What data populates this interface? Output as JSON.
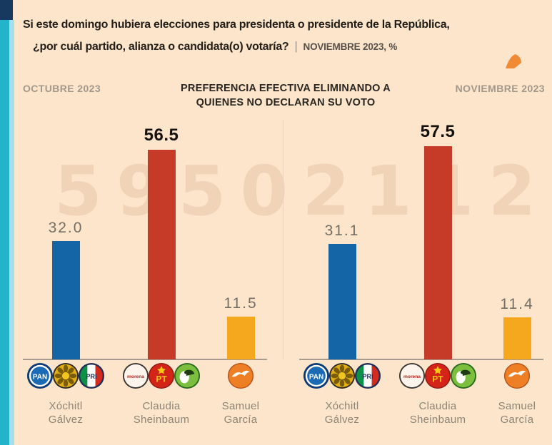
{
  "header": {
    "question_line1": "Si este domingo hubiera elecciones para presidenta o presidente de la República,",
    "question_line2": "¿por cuál partido, alianza o candidata(o) votaría?",
    "separator": "|",
    "survey_note": "NOVIEMBRE 2023, %"
  },
  "section": {
    "left_period_label": "OCTUBRE 2023",
    "title_line1": "PREFERENCIA EFECTIVA ELIMINANDO A",
    "title_line2": "QUIENES NO DECLARAN SU VOTO",
    "right_period_label": "NOVIEMBRE 2023"
  },
  "watermark": "59502112",
  "colors": {
    "background": "#fce5cb",
    "accent_teal": "#23b4ca",
    "accent_navy": "#17395f",
    "bar_blue": "#1465a5",
    "bar_red": "#c63a28",
    "bar_yellow": "#f5a81d",
    "muted_text": "#8d8476",
    "axis_line": "#a59c8f"
  },
  "chart_data": [
    {
      "type": "bar",
      "panel_label": "OCTUBRE 2023",
      "title": "PREFERENCIA EFECTIVA ELIMINANDO A QUIENES NO DECLARAN SU VOTO",
      "categories": [
        "Xóchitl Gálvez",
        "Claudia Sheinbaum",
        "Samuel García"
      ],
      "values": [
        32.0,
        56.5,
        11.5
      ],
      "unit": "%",
      "ylim": [
        0,
        60
      ],
      "grid": false,
      "highlight_index": 1,
      "candidates": [
        {
          "name_line1": "Xóchitl",
          "name_line2": "Gálvez",
          "value": 32.0,
          "value_label": "32.0",
          "color": "#1465a5",
          "parties": [
            "PAN",
            "PRD",
            "PRI"
          ]
        },
        {
          "name_line1": "Claudia",
          "name_line2": "Sheinbaum",
          "value": 56.5,
          "value_label": "56.5",
          "color": "#c63a28",
          "parties": [
            "MORENA",
            "PT",
            "PVEM"
          ]
        },
        {
          "name_line1": "Samuel",
          "name_line2": "García",
          "value": 11.5,
          "value_label": "11.5",
          "color": "#f5a81d",
          "parties": [
            "MC"
          ]
        }
      ]
    },
    {
      "type": "bar",
      "panel_label": "NOVIEMBRE 2023",
      "title": "PREFERENCIA EFECTIVA ELIMINANDO A QUIENES NO DECLARAN SU VOTO",
      "categories": [
        "Xóchitl Gálvez",
        "Claudia Sheinbaum",
        "Samuel García"
      ],
      "values": [
        31.1,
        57.5,
        11.4
      ],
      "unit": "%",
      "ylim": [
        0,
        60
      ],
      "grid": false,
      "highlight_index": 1,
      "candidates": [
        {
          "name_line1": "Xóchitl",
          "name_line2": "Gálvez",
          "value": 31.1,
          "value_label": "31.1",
          "color": "#1465a5",
          "parties": [
            "PAN",
            "PRD",
            "PRI"
          ]
        },
        {
          "name_line1": "Claudia",
          "name_line2": "Sheinbaum",
          "value": 57.5,
          "value_label": "57.5",
          "color": "#c63a28",
          "parties": [
            "MORENA",
            "PT",
            "PVEM"
          ]
        },
        {
          "name_line1": "Samuel",
          "name_line2": "García",
          "value": 11.4,
          "value_label": "11.4",
          "color": "#f5a81d",
          "parties": [
            "MC"
          ]
        }
      ]
    }
  ]
}
